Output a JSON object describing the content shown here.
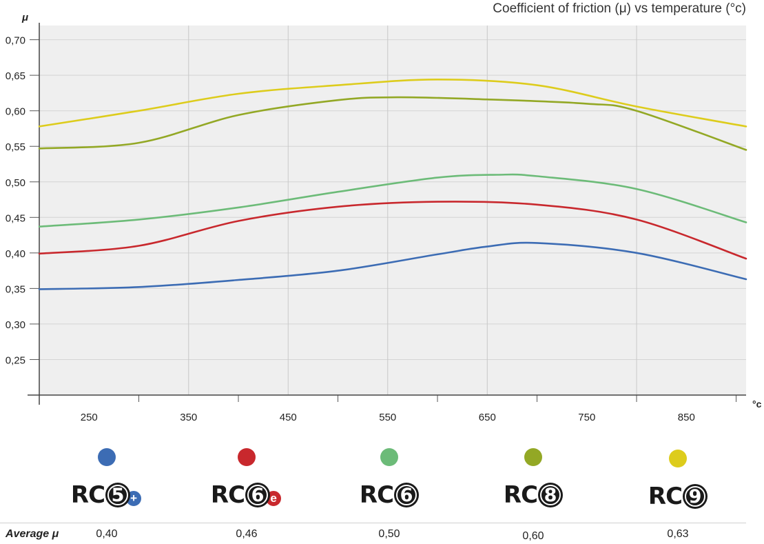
{
  "chart_data": {
    "type": "line",
    "title": "Coefficient of friction (μ) vs temperature (°c)",
    "ylabel": "μ",
    "xlabel": "°c",
    "x_ticks": [
      250,
      350,
      450,
      550,
      650,
      750,
      850
    ],
    "y_ticks": [
      "0,25",
      "0,30",
      "0,35",
      "0,40",
      "0,45",
      "0,50",
      "0,55",
      "0,60",
      "0,65",
      "0,70"
    ],
    "ylim": [
      0.2,
      0.72
    ],
    "xlim": [
      200,
      910
    ],
    "grid": true,
    "series": [
      {
        "name": "RC5+",
        "color": "#3c6cb4",
        "x": [
          200,
          300,
          400,
          500,
          600,
          650,
          700,
          800,
          910
        ],
        "values": [
          0.349,
          0.352,
          0.362,
          0.375,
          0.398,
          0.409,
          0.414,
          0.4,
          0.363
        ]
      },
      {
        "name": "RC6e",
        "color": "#c8282d",
        "x": [
          200,
          300,
          400,
          500,
          600,
          700,
          800,
          910
        ],
        "values": [
          0.399,
          0.41,
          0.445,
          0.465,
          0.472,
          0.468,
          0.447,
          0.392
        ]
      },
      {
        "name": "RC6",
        "color": "#6cbb78",
        "x": [
          200,
          300,
          400,
          500,
          600,
          660,
          700,
          800,
          910
        ],
        "values": [
          0.437,
          0.447,
          0.464,
          0.486,
          0.506,
          0.51,
          0.508,
          0.49,
          0.443
        ]
      },
      {
        "name": "RC8",
        "color": "#93a825",
        "x": [
          200,
          300,
          400,
          500,
          560,
          650,
          750,
          800,
          910
        ],
        "values": [
          0.547,
          0.555,
          0.594,
          0.615,
          0.619,
          0.616,
          0.61,
          0.6,
          0.545
        ]
      },
      {
        "name": "RC9",
        "color": "#ddcc1c",
        "x": [
          200,
          300,
          400,
          500,
          600,
          700,
          800,
          910
        ],
        "values": [
          0.578,
          0.6,
          0.624,
          0.636,
          0.644,
          0.636,
          0.606,
          0.578
        ]
      }
    ]
  },
  "legend": [
    {
      "prefix": "RC",
      "number": "5",
      "sub": "+",
      "sub_color": "#3c6cb4",
      "dot_color": "#3c6cb4",
      "avg": "0,40"
    },
    {
      "prefix": "RC",
      "number": "6",
      "sub": "e",
      "sub_color": "#c8282d",
      "dot_color": "#c8282d",
      "avg": "0,46"
    },
    {
      "prefix": "RC",
      "number": "6",
      "sub": "",
      "sub_color": "",
      "dot_color": "#6cbb78",
      "avg": "0,50"
    },
    {
      "prefix": "RC",
      "number": "8",
      "sub": "",
      "sub_color": "",
      "dot_color": "#93a825",
      "avg": "0,60"
    },
    {
      "prefix": "RC",
      "number": "9",
      "sub": "",
      "sub_color": "",
      "dot_color": "#ddcc1c",
      "avg": "0,63"
    }
  ],
  "average_label": "Average μ"
}
